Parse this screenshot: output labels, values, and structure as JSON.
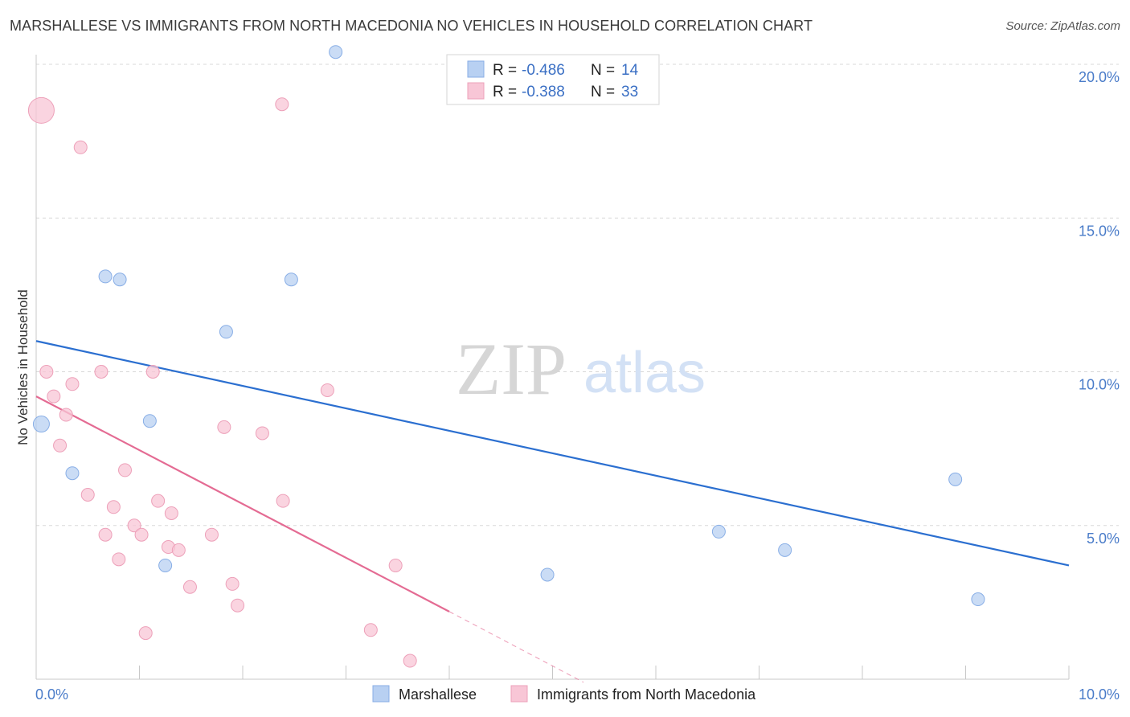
{
  "title": "MARSHALLESE VS IMMIGRANTS FROM NORTH MACEDONIA NO VEHICLES IN HOUSEHOLD CORRELATION CHART",
  "source": "Source: ZipAtlas.com",
  "watermark": {
    "zip": "ZIP",
    "atlas": "atlas"
  },
  "colors": {
    "blue_fill": "#b8d0f2",
    "blue_stroke": "#88aee6",
    "blue_line": "#2b6fd0",
    "pink_fill": "#f8c6d6",
    "pink_stroke": "#eda0b9",
    "pink_line": "#e46b93",
    "grid": "#d8d8d8",
    "axis_text": "#4a7cc9"
  },
  "legend": {
    "r_label": "R =",
    "n_label": "N =",
    "rows": [
      {
        "r": "-0.486",
        "n": "14"
      },
      {
        "r": "-0.388",
        "n": "33"
      }
    ]
  },
  "chart_data": {
    "type": "scatter",
    "xlabel": "",
    "ylabel": "No Vehicles in Household",
    "xlim": [
      0,
      10
    ],
    "ylim": [
      0,
      20
    ],
    "x_tick_labels": [
      "0.0%",
      "10.0%"
    ],
    "y_ticks": [
      5,
      10,
      15,
      20
    ],
    "y_tick_labels": [
      "5.0%",
      "10.0%",
      "15.0%",
      "20.0%"
    ],
    "series": [
      {
        "name": "Marshallese",
        "color": "blue",
        "points": [
          {
            "x": 0.05,
            "y": 8.3,
            "s": 10
          },
          {
            "x": 0.35,
            "y": 6.7,
            "s": 8
          },
          {
            "x": 0.67,
            "y": 13.1,
            "s": 8
          },
          {
            "x": 0.81,
            "y": 13.0,
            "s": 8
          },
          {
            "x": 1.1,
            "y": 8.4,
            "s": 8
          },
          {
            "x": 1.25,
            "y": 3.7,
            "s": 8
          },
          {
            "x": 1.84,
            "y": 11.3,
            "s": 8
          },
          {
            "x": 2.47,
            "y": 13.0,
            "s": 8
          },
          {
            "x": 2.9,
            "y": 20.4,
            "s": 8
          },
          {
            "x": 4.95,
            "y": 3.4,
            "s": 8
          },
          {
            "x": 6.61,
            "y": 4.8,
            "s": 8
          },
          {
            "x": 7.25,
            "y": 4.2,
            "s": 8
          },
          {
            "x": 8.9,
            "y": 6.5,
            "s": 8
          },
          {
            "x": 9.12,
            "y": 2.6,
            "s": 8
          }
        ],
        "trend": {
          "x0": 0.0,
          "y0": 11.0,
          "x1": 10.0,
          "y1": 3.7
        }
      },
      {
        "name": "Immigrants from North Macedonia",
        "color": "pink",
        "points": [
          {
            "x": 0.05,
            "y": 18.5,
            "s": 16
          },
          {
            "x": 0.1,
            "y": 10.0,
            "s": 8
          },
          {
            "x": 0.17,
            "y": 9.2,
            "s": 8
          },
          {
            "x": 0.23,
            "y": 7.6,
            "s": 8
          },
          {
            "x": 0.29,
            "y": 8.6,
            "s": 8
          },
          {
            "x": 0.35,
            "y": 9.6,
            "s": 8
          },
          {
            "x": 0.43,
            "y": 17.3,
            "s": 8
          },
          {
            "x": 0.5,
            "y": 6.0,
            "s": 8
          },
          {
            "x": 0.63,
            "y": 10.0,
            "s": 8
          },
          {
            "x": 0.67,
            "y": 4.7,
            "s": 8
          },
          {
            "x": 0.75,
            "y": 5.6,
            "s": 8
          },
          {
            "x": 0.8,
            "y": 3.9,
            "s": 8
          },
          {
            "x": 0.86,
            "y": 6.8,
            "s": 8
          },
          {
            "x": 0.95,
            "y": 5.0,
            "s": 8
          },
          {
            "x": 1.02,
            "y": 4.7,
            "s": 8
          },
          {
            "x": 1.06,
            "y": 1.5,
            "s": 8
          },
          {
            "x": 1.13,
            "y": 10.0,
            "s": 8
          },
          {
            "x": 1.18,
            "y": 5.8,
            "s": 8
          },
          {
            "x": 1.28,
            "y": 4.3,
            "s": 8
          },
          {
            "x": 1.31,
            "y": 5.4,
            "s": 8
          },
          {
            "x": 1.38,
            "y": 4.2,
            "s": 8
          },
          {
            "x": 1.49,
            "y": 3.0,
            "s": 8
          },
          {
            "x": 1.7,
            "y": 4.7,
            "s": 8
          },
          {
            "x": 1.82,
            "y": 8.2,
            "s": 8
          },
          {
            "x": 1.9,
            "y": 3.1,
            "s": 8
          },
          {
            "x": 1.95,
            "y": 2.4,
            "s": 8
          },
          {
            "x": 2.19,
            "y": 8.0,
            "s": 8
          },
          {
            "x": 2.38,
            "y": 18.7,
            "s": 8
          },
          {
            "x": 2.39,
            "y": 5.8,
            "s": 8
          },
          {
            "x": 2.82,
            "y": 9.4,
            "s": 8
          },
          {
            "x": 3.24,
            "y": 1.6,
            "s": 8
          },
          {
            "x": 3.48,
            "y": 3.7,
            "s": 8
          },
          {
            "x": 3.62,
            "y": 0.6,
            "s": 8
          }
        ],
        "trend": {
          "x0": 0.0,
          "y0": 9.2,
          "x1": 4.0,
          "y1": 2.2
        },
        "trend_dashed": {
          "x0": 4.0,
          "y0": 2.2,
          "x1": 5.3,
          "y1": -0.1
        }
      }
    ],
    "legend_bottom": [
      "Marshallese",
      "Immigrants from North Macedonia"
    ]
  }
}
